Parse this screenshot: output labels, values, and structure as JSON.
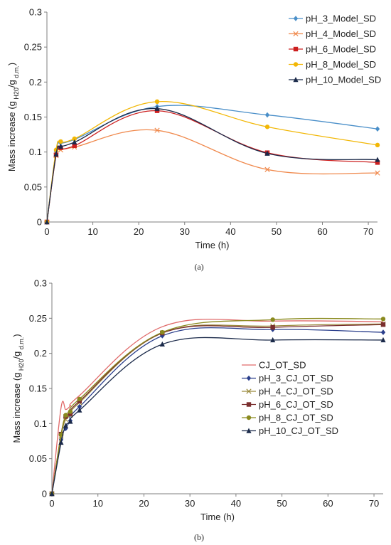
{
  "chart_data": [
    {
      "type": "line",
      "caption": "(a)",
      "xlabel": "Time (h)",
      "ylabel": "Mass increase (g H20/g d.m.)",
      "ylabel_parts": [
        "Mass increase (g",
        "H20",
        "/g",
        "d.m.",
        ")"
      ],
      "xlim": [
        0,
        72
      ],
      "ylim": [
        0,
        0.3
      ],
      "xticks": [
        0,
        10,
        20,
        30,
        40,
        50,
        60,
        70
      ],
      "yticks": [
        0,
        0.05,
        0.1,
        0.15,
        0.2,
        0.25,
        0.3
      ],
      "ytick_labels": [
        "0",
        "0.05",
        "0.1",
        "0.15",
        "0.2",
        "0.25",
        "0.3"
      ],
      "grid": false,
      "legend_position": "top-right",
      "x": [
        0,
        2,
        3,
        6,
        24,
        48,
        72
      ],
      "series": [
        {
          "name": "pH_3_Model_SD",
          "color": "#4a8fc9",
          "marker": "diamond",
          "values": [
            0,
            0.101,
            0.113,
            0.118,
            0.165,
            0.153,
            0.133
          ]
        },
        {
          "name": "pH_4_Model_SD",
          "color": "#f08a4e",
          "marker": "x",
          "values": [
            0,
            0.095,
            0.103,
            0.107,
            0.131,
            0.075,
            0.07
          ]
        },
        {
          "name": "pH_6_Model_SD",
          "color": "#cc1f1f",
          "marker": "square",
          "values": [
            0,
            0.096,
            0.106,
            0.109,
            0.159,
            0.099,
            0.085
          ]
        },
        {
          "name": "pH_8_Model_SD",
          "color": "#f2b705",
          "marker": "circle",
          "values": [
            0,
            0.103,
            0.115,
            0.119,
            0.172,
            0.136,
            0.11
          ]
        },
        {
          "name": "pH_10_Model_SD",
          "color": "#1b2a4a",
          "marker": "triangle",
          "values": [
            0,
            0.097,
            0.108,
            0.114,
            0.162,
            0.098,
            0.089
          ]
        }
      ]
    },
    {
      "type": "line",
      "caption": "(b)",
      "xlabel": "Time (h)",
      "ylabel": "Mass increase (g H20/g d.m.)",
      "ylabel_parts": [
        "Mass increase (g",
        "H20",
        "/g",
        "d.m.",
        ")"
      ],
      "xlim": [
        0,
        72
      ],
      "ylim": [
        0,
        0.3
      ],
      "xticks": [
        0,
        10,
        20,
        30,
        40,
        50,
        60,
        70
      ],
      "yticks": [
        0,
        0.05,
        0.1,
        0.15,
        0.2,
        0.25,
        0.3
      ],
      "ytick_labels": [
        "0",
        "0.05",
        "0.1",
        "0.15",
        "0.2",
        "0.25",
        "0.3"
      ],
      "grid": false,
      "legend_position": "right",
      "x": [
        0,
        2,
        3,
        4,
        6,
        24,
        48,
        72
      ],
      "series": [
        {
          "name": "CJ_OT_SD",
          "color": "#e06a6a",
          "marker": "none",
          "values": [
            0,
            0.123,
            0.12,
            0.125,
            0.14,
            0.238,
            0.246,
            0.245
          ]
        },
        {
          "name": "pH_3_CJ_OT_SD",
          "color": "#2b3f8c",
          "marker": "diamond",
          "values": [
            0,
            0.077,
            0.093,
            0.104,
            0.124,
            0.225,
            0.234,
            0.23
          ]
        },
        {
          "name": "pH_4_CJ_OT_SD",
          "color": "#9a8a3c",
          "marker": "x",
          "values": [
            0,
            0.082,
            0.106,
            0.112,
            0.13,
            0.229,
            0.239,
            0.242
          ]
        },
        {
          "name": "pH_6_CJ_OT_SD",
          "color": "#7a2e2e",
          "marker": "square",
          "values": [
            0,
            0.085,
            0.11,
            0.114,
            0.132,
            0.229,
            0.237,
            0.241
          ]
        },
        {
          "name": "pH_8_CJ_OT_SD",
          "color": "#8a8a1e",
          "marker": "circle",
          "values": [
            0,
            0.084,
            0.112,
            0.117,
            0.135,
            0.23,
            0.248,
            0.249
          ]
        },
        {
          "name": "pH_10_CJ_OT_SD",
          "color": "#1b2a4a",
          "marker": "triangle",
          "values": [
            0,
            0.073,
            0.097,
            0.103,
            0.119,
            0.213,
            0.219,
            0.219
          ]
        }
      ]
    }
  ]
}
